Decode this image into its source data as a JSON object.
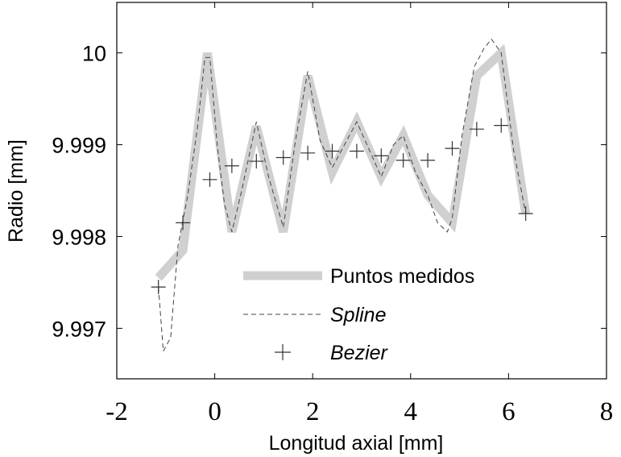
{
  "chart_data": {
    "type": "line",
    "title": "",
    "xlabel": "Longitud axial [mm]",
    "ylabel": "Radio [mm]",
    "xlim": [
      -2,
      8
    ],
    "ylim": [
      9.99645,
      10.00055
    ],
    "xticks": [
      -2,
      0,
      2,
      4,
      6,
      8
    ],
    "xtick_labels": [
      "-2",
      "0",
      "2",
      "4",
      "6",
      "8"
    ],
    "yticks": [
      9.997,
      9.998,
      9.999,
      10
    ],
    "ytick_labels": [
      "9.997",
      "9.998",
      "9.999",
      "10"
    ],
    "grid": false,
    "legend_position": "bottom-center",
    "series": [
      {
        "name": "Puntos medidos",
        "style": "thick-line",
        "color": "#d0d0d0",
        "x": [
          -1.15,
          -0.65,
          -0.15,
          0.35,
          0.85,
          1.4,
          1.9,
          2.4,
          2.9,
          3.4,
          3.85,
          4.35,
          4.85,
          5.35,
          5.85,
          6.35
        ],
        "y": [
          9.99755,
          9.99785,
          10.0,
          9.99805,
          9.9992,
          9.99805,
          9.99975,
          9.9987,
          9.99925,
          9.99865,
          9.9991,
          9.99845,
          9.99815,
          9.99975,
          10.0,
          9.99825
        ]
      },
      {
        "name": "Spline",
        "style": "dashed",
        "color": "#444444",
        "x": [
          -1.15,
          -1.05,
          -0.9,
          -0.75,
          -0.55,
          -0.35,
          -0.2,
          -0.1,
          0.05,
          0.2,
          0.35,
          0.55,
          0.85,
          1.1,
          1.4,
          1.65,
          1.9,
          2.15,
          2.4,
          2.65,
          2.9,
          3.15,
          3.4,
          3.65,
          3.85,
          4.1,
          4.35,
          4.55,
          4.75,
          4.85,
          5.05,
          5.3,
          5.5,
          5.65,
          5.85,
          6.1,
          6.35
        ],
        "y": [
          9.99745,
          9.99675,
          9.9969,
          9.9979,
          9.99845,
          9.9992,
          9.99995,
          9.99995,
          9.999,
          9.99835,
          9.99805,
          9.9985,
          9.99925,
          9.99865,
          9.9981,
          9.99905,
          9.9998,
          9.99905,
          9.99875,
          9.999,
          9.99925,
          9.99895,
          9.99865,
          9.999,
          9.9991,
          9.9987,
          9.99845,
          9.99815,
          9.99805,
          9.9982,
          9.9991,
          9.99985,
          10.00005,
          10.00015,
          10.0,
          9.99895,
          9.99825
        ]
      },
      {
        "name": "Bezier",
        "style": "plus-markers",
        "color": "#333333",
        "x": [
          -1.15,
          -0.65,
          -0.1,
          0.35,
          0.85,
          1.4,
          1.9,
          2.4,
          2.9,
          3.4,
          3.85,
          4.35,
          4.85,
          5.35,
          5.85,
          6.35
        ],
        "y": [
          9.99745,
          9.99815,
          9.99862,
          9.99877,
          9.99882,
          9.99886,
          9.99891,
          9.99893,
          9.99893,
          9.99888,
          9.99883,
          9.99883,
          9.99896,
          9.99917,
          9.99921,
          9.99825
        ]
      }
    ]
  }
}
